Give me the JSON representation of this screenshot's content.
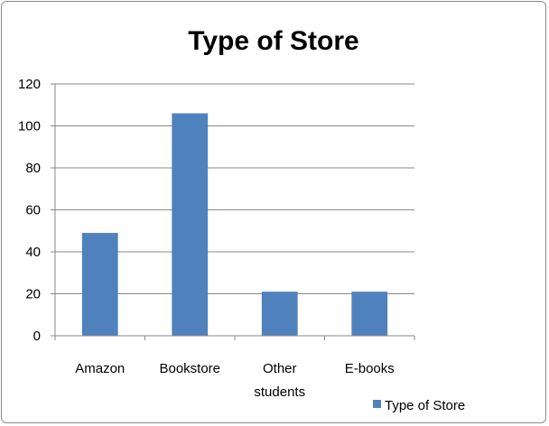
{
  "chart_data": {
    "type": "bar",
    "title": "Type of Store",
    "categories": [
      "Amazon",
      "Bookstore",
      "Other students",
      "E-books"
    ],
    "category_lines": [
      [
        "Amazon"
      ],
      [
        "Bookstore"
      ],
      [
        "Other",
        "students"
      ],
      [
        "E-books"
      ]
    ],
    "series": [
      {
        "name": "Type of Store",
        "values": [
          49,
          106,
          21,
          21
        ]
      }
    ],
    "ylim": [
      0,
      120
    ],
    "yticks": [
      "0",
      "20",
      "40",
      "60",
      "80",
      "100",
      "120"
    ],
    "xlabel": "",
    "ylabel": "",
    "grid": true,
    "legend_position": "bottom-right",
    "bar_color": "#4f81bd"
  }
}
